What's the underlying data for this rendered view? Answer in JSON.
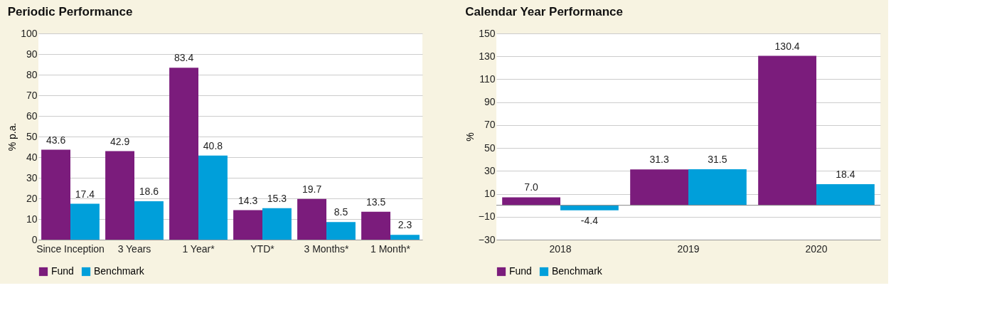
{
  "chart_data": [
    {
      "type": "bar",
      "title": "Periodic Performance",
      "ylabel": "% p.a.",
      "categories": [
        "Since Inception",
        "3 Years",
        "1 Year*",
        "YTD*",
        "3 Months*",
        "1 Month*"
      ],
      "series": [
        {
          "name": "Fund",
          "color": "#7b1c7c",
          "values": [
            43.6,
            42.9,
            83.4,
            14.3,
            19.7,
            13.5
          ],
          "value_labels": [
            "43.6",
            "42.9",
            "83.4",
            "14.3",
            "19.7",
            "13.5"
          ]
        },
        {
          "name": "Benchmark",
          "color": "#009fda",
          "values": [
            17.4,
            18.6,
            40.8,
            15.3,
            8.5,
            2.3
          ],
          "value_labels": [
            "17.4",
            "18.6",
            "40.8",
            "15.3",
            "8.5",
            "2.3"
          ]
        }
      ],
      "ylim": [
        0,
        100
      ],
      "yticks": [
        0,
        10,
        20,
        30,
        40,
        50,
        60,
        70,
        80,
        90,
        100
      ],
      "grid": "y",
      "legend": "bottom left"
    },
    {
      "type": "bar",
      "title": "Calendar Year Performance",
      "ylabel": "%",
      "categories": [
        "2018",
        "2019",
        "2020"
      ],
      "series": [
        {
          "name": "Fund",
          "color": "#7b1c7c",
          "values": [
            7.0,
            31.3,
            130.4
          ],
          "value_labels": [
            "7.0",
            "31.3",
            "130.4"
          ]
        },
        {
          "name": "Benchmark",
          "color": "#009fda",
          "values": [
            -4.4,
            31.5,
            18.4
          ],
          "value_labels": [
            "-4.4",
            "31.5",
            "18.4"
          ]
        }
      ],
      "ylim": [
        -30,
        150
      ],
      "yticks": [
        -30,
        -10,
        10,
        30,
        50,
        70,
        90,
        110,
        130,
        150
      ],
      "grid": "y",
      "legend": "bottom left",
      "ref_lines": [
        {
          "axis": "y",
          "value": 0,
          "color": "#888888"
        }
      ]
    }
  ]
}
